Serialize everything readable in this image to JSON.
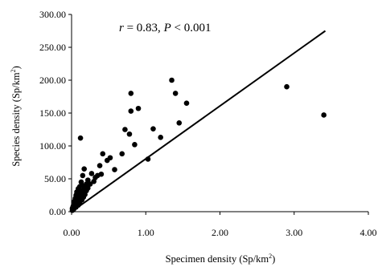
{
  "chart_data": {
    "type": "scatter",
    "title": "",
    "annotation": {
      "r_symbol": "r",
      "r_text": " = 0.83, ",
      "p_symbol": "P",
      "p_text": " < 0.001"
    },
    "xlabel": {
      "main": "Specimen density (Sp/km",
      "sup": "2",
      "tail": ")"
    },
    "ylabel": {
      "main": "Species density (Sp/km",
      "sup": "2",
      "tail": ")"
    },
    "xlim": [
      0,
      4
    ],
    "ylim": [
      0,
      300
    ],
    "x_ticks": [
      0,
      1,
      2,
      3,
      4
    ],
    "x_tick_labels": [
      "0.00",
      "1.00",
      "2.00",
      "3.00",
      "4.00"
    ],
    "y_ticks": [
      0,
      50,
      100,
      150,
      200,
      250,
      300
    ],
    "y_tick_labels": [
      "0.00",
      "50.00",
      "100.00",
      "150.00",
      "200.00",
      "250.00",
      "300.00"
    ],
    "grid": false,
    "legend": "none",
    "colors": {
      "points": "#000000",
      "line": "#000000",
      "axes": "#000000"
    },
    "trendline": {
      "x_start": 0,
      "y_start": 0,
      "x_end": 3.42,
      "y_end": 275
    },
    "points": [
      {
        "x": 0.01,
        "y": 2
      },
      {
        "x": 0.01,
        "y": 5
      },
      {
        "x": 0.02,
        "y": 3
      },
      {
        "x": 0.02,
        "y": 8
      },
      {
        "x": 0.03,
        "y": 4
      },
      {
        "x": 0.03,
        "y": 12
      },
      {
        "x": 0.04,
        "y": 6
      },
      {
        "x": 0.04,
        "y": 16
      },
      {
        "x": 0.05,
        "y": 9
      },
      {
        "x": 0.05,
        "y": 20
      },
      {
        "x": 0.06,
        "y": 7
      },
      {
        "x": 0.06,
        "y": 25
      },
      {
        "x": 0.07,
        "y": 12
      },
      {
        "x": 0.07,
        "y": 30
      },
      {
        "x": 0.08,
        "y": 15
      },
      {
        "x": 0.08,
        "y": 22
      },
      {
        "x": 0.09,
        "y": 10
      },
      {
        "x": 0.09,
        "y": 35
      },
      {
        "x": 0.1,
        "y": 18
      },
      {
        "x": 0.1,
        "y": 28
      },
      {
        "x": 0.11,
        "y": 14
      },
      {
        "x": 0.11,
        "y": 38
      },
      {
        "x": 0.12,
        "y": 20
      },
      {
        "x": 0.12,
        "y": 32
      },
      {
        "x": 0.13,
        "y": 24
      },
      {
        "x": 0.13,
        "y": 45
      },
      {
        "x": 0.14,
        "y": 18
      },
      {
        "x": 0.14,
        "y": 40
      },
      {
        "x": 0.15,
        "y": 27
      },
      {
        "x": 0.15,
        "y": 55
      },
      {
        "x": 0.16,
        "y": 22
      },
      {
        "x": 0.16,
        "y": 30
      },
      {
        "x": 0.17,
        "y": 34
      },
      {
        "x": 0.17,
        "y": 65
      },
      {
        "x": 0.18,
        "y": 26
      },
      {
        "x": 0.18,
        "y": 38
      },
      {
        "x": 0.2,
        "y": 32
      },
      {
        "x": 0.2,
        "y": 42
      },
      {
        "x": 0.22,
        "y": 36
      },
      {
        "x": 0.22,
        "y": 48
      },
      {
        "x": 0.25,
        "y": 42
      },
      {
        "x": 0.27,
        "y": 58
      },
      {
        "x": 0.3,
        "y": 46
      },
      {
        "x": 0.32,
        "y": 52
      },
      {
        "x": 0.35,
        "y": 55
      },
      {
        "x": 0.38,
        "y": 70
      },
      {
        "x": 0.4,
        "y": 57
      },
      {
        "x": 0.42,
        "y": 88
      },
      {
        "x": 0.48,
        "y": 78
      },
      {
        "x": 0.52,
        "y": 82
      },
      {
        "x": 0.58,
        "y": 64
      },
      {
        "x": 0.68,
        "y": 88
      },
      {
        "x": 0.72,
        "y": 125
      },
      {
        "x": 0.78,
        "y": 118
      },
      {
        "x": 0.8,
        "y": 180
      },
      {
        "x": 0.8,
        "y": 153
      },
      {
        "x": 0.85,
        "y": 102
      },
      {
        "x": 0.9,
        "y": 157
      },
      {
        "x": 1.03,
        "y": 80
      },
      {
        "x": 1.1,
        "y": 126
      },
      {
        "x": 1.2,
        "y": 113
      },
      {
        "x": 1.35,
        "y": 200
      },
      {
        "x": 1.4,
        "y": 180
      },
      {
        "x": 1.45,
        "y": 135
      },
      {
        "x": 1.55,
        "y": 165
      },
      {
        "x": 0.12,
        "y": 112
      },
      {
        "x": 2.9,
        "y": 190
      },
      {
        "x": 3.4,
        "y": 147
      }
    ]
  }
}
